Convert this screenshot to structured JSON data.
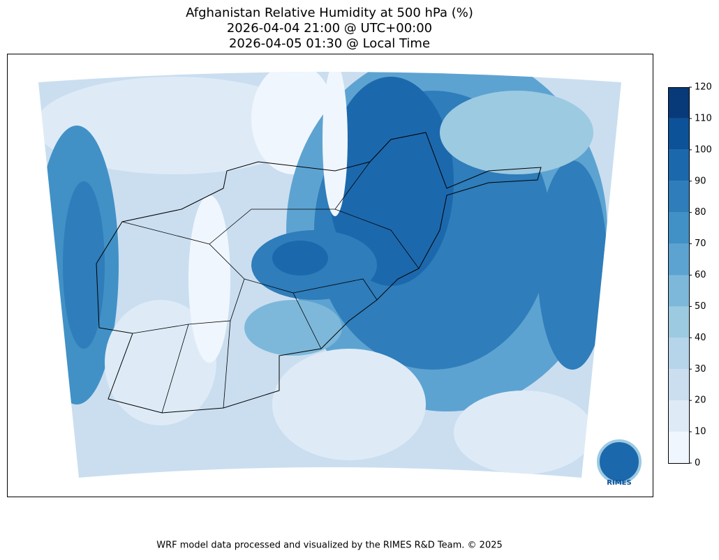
{
  "title": [
    "Afghanistan Relative Humidity at 500 hPa (%)",
    "2026-04-04 21:00 @ UTC+00:00",
    "2026-04-05 01:30 @ Local Time"
  ],
  "colorbar": {
    "ticks": [
      0,
      10,
      20,
      30,
      40,
      50,
      60,
      70,
      80,
      90,
      100,
      110,
      120
    ],
    "colors": [
      "#f0f6fd",
      "#deebf7",
      "#cadef0",
      "#b6d4ea",
      "#9ccae1",
      "#7db8da",
      "#5da3d1",
      "#4191c6",
      "#2f7dba",
      "#1c68ad",
      "#0c5299",
      "#083a7a"
    ]
  },
  "logo": "RIMES",
  "footer": "WRF model data processed and visualized by the RIMES R&D Team. © 2025"
}
